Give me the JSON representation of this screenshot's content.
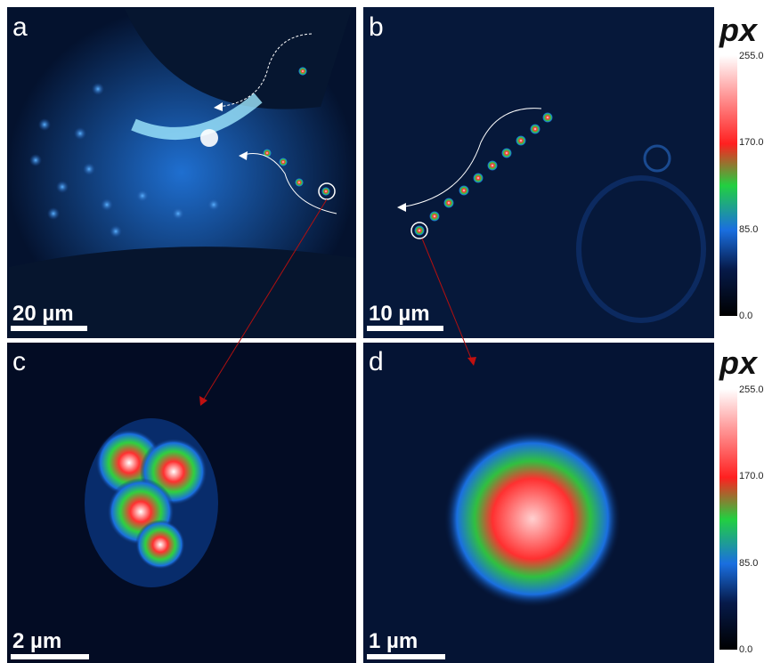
{
  "panels": [
    {
      "label": "a",
      "scale_bar": "20 µm"
    },
    {
      "label": "b",
      "scale_bar": "10 µm"
    },
    {
      "label": "c",
      "scale_bar": "2 µm"
    },
    {
      "label": "d",
      "scale_bar": "1 µm"
    }
  ],
  "colorbars": [
    {
      "title": "px",
      "ticks": [
        "255.0",
        "170.0",
        "85.0",
        "0.0"
      ]
    },
    {
      "title": "px",
      "ticks": [
        "255.0",
        "170.0",
        "85.0",
        "0.0"
      ]
    }
  ]
}
